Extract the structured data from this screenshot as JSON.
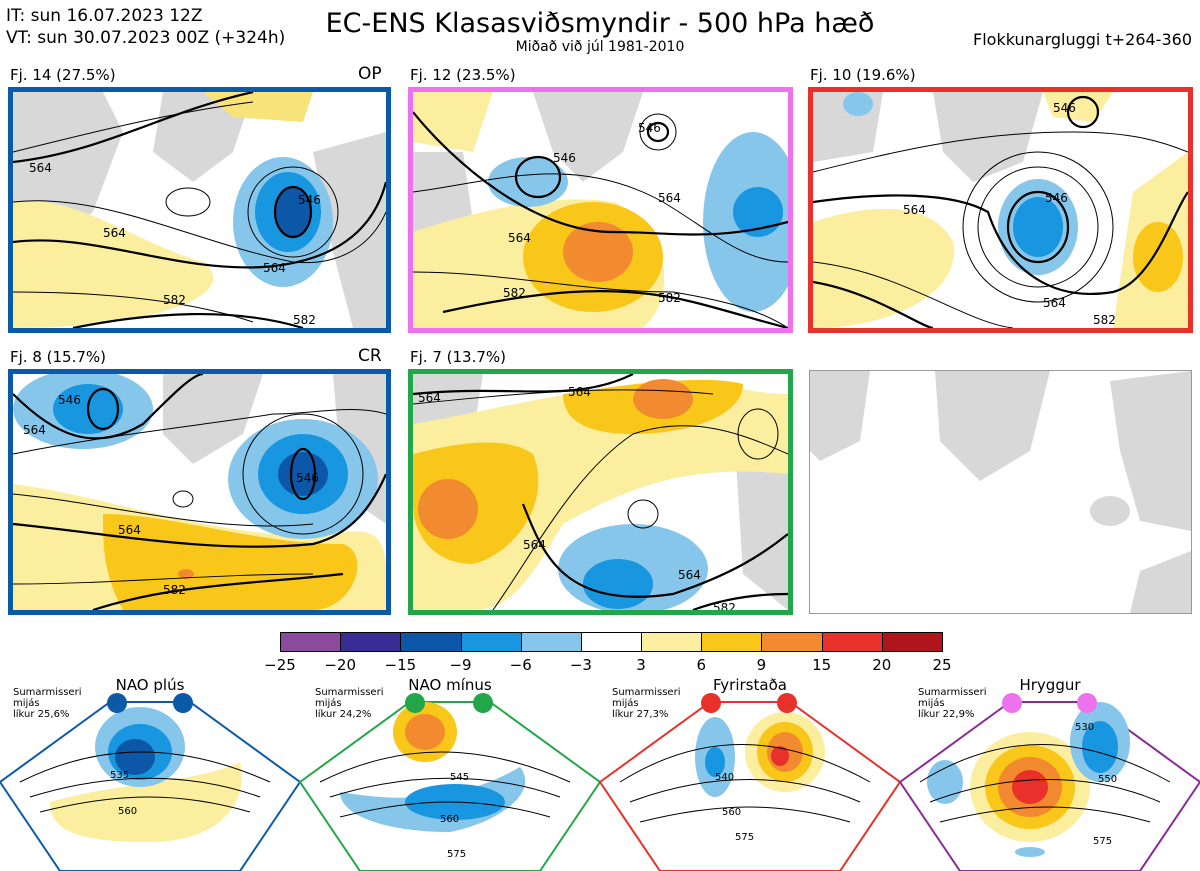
{
  "header": {
    "it_line": "IT: sun 16.07.2023 12Z",
    "vt_line": "VT: sun 30.07.2023 00Z  (+324h)",
    "title": "EC-ENS Klasasviðsmyndir - 500 hPa hæð",
    "subtitle": "Miðað við júl 1981-2010",
    "window": "Flokkunargluggi t+264-360"
  },
  "panels": [
    {
      "label": "Fj. 14 (27.5%)",
      "tag": "OP",
      "border": "#0b5aa8",
      "contours": [
        "564",
        "546",
        "564",
        "564",
        "582",
        "582"
      ]
    },
    {
      "label": "Fj. 12 (23.5%)",
      "tag": "",
      "border": "#ee72ee",
      "contours": [
        "546",
        "546",
        "564",
        "564",
        "582",
        "582"
      ]
    },
    {
      "label": "Fj. 10 (19.6%)",
      "tag": "",
      "border": "#e8312a",
      "contours": [
        "546",
        "564",
        "546",
        "564",
        "582"
      ]
    },
    {
      "label": "Fj. 8 (15.7%)",
      "tag": "CR",
      "border": "#0b5aa8",
      "contours": [
        "546",
        "564",
        "546",
        "564",
        "582"
      ]
    },
    {
      "label": "Fj. 7 (13.7%)",
      "tag": "",
      "border": "#22a64a",
      "contours": [
        "564",
        "564",
        "564",
        "582",
        "564"
      ]
    }
  ],
  "colorbar": {
    "ticks": [
      "−25",
      "−20",
      "−15",
      "−9",
      "−6",
      "−3",
      "3",
      "6",
      "9",
      "15",
      "20",
      "25"
    ],
    "colors": [
      "#8a4b9e",
      "#3a2c94",
      "#0d57a8",
      "#1896df",
      "#86c6ea",
      "#ffffff",
      "#fbee9f",
      "#f8c71a",
      "#f28a2f",
      "#e8312a",
      "#b0151c"
    ]
  },
  "regimes": [
    {
      "name": "NAO plús",
      "note": [
        "Sumarmisseri",
        "mijás",
        "líkur 25,6%"
      ],
      "color": "#0b5aa8",
      "labels": [
        "535",
        "560"
      ]
    },
    {
      "name": "NAO mínus",
      "note": [
        "Sumarmisseri",
        "mijás",
        "líkur 24,2%"
      ],
      "color": "#22a64a",
      "labels": [
        "545",
        "560",
        "575"
      ]
    },
    {
      "name": "Fyrirstaða",
      "note": [
        "Sumarmisseri",
        "mijás",
        "líkur 27,3%"
      ],
      "color": "#e8312a",
      "labels": [
        "540",
        "560",
        "575"
      ]
    },
    {
      "name": "Hryggur",
      "note": [
        "Sumarmisseri",
        "mijás",
        "líkur 22,9%"
      ],
      "color": "#8b2a96",
      "labels": [
        "530",
        "550",
        "575"
      ]
    }
  ]
}
